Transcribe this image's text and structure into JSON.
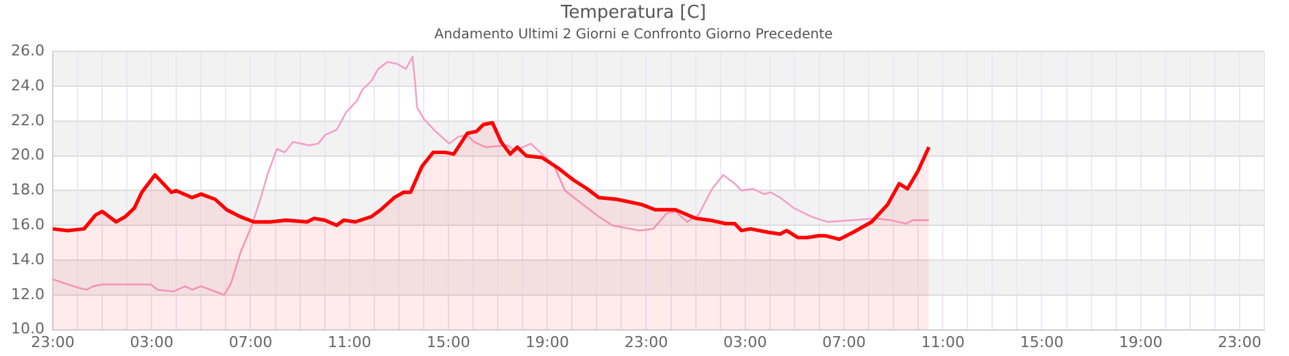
{
  "chart_data": {
    "type": "line",
    "title": "Temperatura [C]",
    "subtitle": "Andamento Ultimi 2 Giorni e Confronto Giorno Precedente",
    "xlim": [
      "--01-01T23:00",
      "--01-04T00:00"
    ],
    "xticks": [
      {
        "value": "--01-01T23:00",
        "label": "23:00"
      },
      {
        "value": "--01-02T00:00",
        "label": null
      },
      {
        "value": "--01-02T01:00",
        "label": null
      },
      {
        "value": "--01-02T02:00",
        "label": null
      },
      {
        "value": "--01-02T03:00",
        "label": "03:00"
      },
      {
        "value": "--01-02T04:00",
        "label": null
      },
      {
        "value": "--01-02T05:00",
        "label": null
      },
      {
        "value": "--01-02T06:00",
        "label": null
      },
      {
        "value": "--01-02T07:00",
        "label": "07:00"
      },
      {
        "value": "--01-02T08:00",
        "label": null
      },
      {
        "value": "--01-02T09:00",
        "label": null
      },
      {
        "value": "--01-02T10:00",
        "label": null
      },
      {
        "value": "--01-02T11:00",
        "label": "11:00"
      },
      {
        "value": "--01-02T12:00",
        "label": null
      },
      {
        "value": "--01-02T13:00",
        "label": null
      },
      {
        "value": "--01-02T14:00",
        "label": null
      },
      {
        "value": "--01-02T15:00",
        "label": "15:00"
      },
      {
        "value": "--01-02T16:00",
        "label": null
      },
      {
        "value": "--01-02T17:00",
        "label": null
      },
      {
        "value": "--01-02T18:00",
        "label": null
      },
      {
        "value": "--01-02T19:00",
        "label": "19:00"
      },
      {
        "value": "--01-02T20:00",
        "label": null
      },
      {
        "value": "--01-02T21:00",
        "label": null
      },
      {
        "value": "--01-02T22:00",
        "label": null
      },
      {
        "value": "--01-02T23:00",
        "label": "23:00"
      },
      {
        "value": "--01-03T00:00",
        "label": null
      },
      {
        "value": "--01-03T01:00",
        "label": null
      },
      {
        "value": "--01-03T02:00",
        "label": null
      },
      {
        "value": "--01-03T03:00",
        "label": "03:00"
      },
      {
        "value": "--01-03T04:00",
        "label": null
      },
      {
        "value": "--01-03T05:00",
        "label": null
      },
      {
        "value": "--01-03T06:00",
        "label": null
      },
      {
        "value": "--01-03T07:00",
        "label": "07:00"
      },
      {
        "value": "--01-03T08:00",
        "label": null
      },
      {
        "value": "--01-03T09:00",
        "label": null
      },
      {
        "value": "--01-03T10:00",
        "label": null
      },
      {
        "value": "--01-03T11:00",
        "label": "11:00"
      },
      {
        "value": "--01-03T12:00",
        "label": null
      },
      {
        "value": "--01-03T13:00",
        "label": null
      },
      {
        "value": "--01-03T14:00",
        "label": null
      },
      {
        "value": "--01-03T15:00",
        "label": "15:00"
      },
      {
        "value": "--01-03T16:00",
        "label": null
      },
      {
        "value": "--01-03T17:00",
        "label": null
      },
      {
        "value": "--01-03T18:00",
        "label": null
      },
      {
        "value": "--01-03T19:00",
        "label": "19:00"
      },
      {
        "value": "--01-03T20:00",
        "label": null
      },
      {
        "value": "--01-03T21:00",
        "label": null
      },
      {
        "value": "--01-03T22:00",
        "label": null
      },
      {
        "value": "--01-03T23:00",
        "label": "23:00"
      },
      {
        "value": "--01-04T00:00",
        "label": null
      }
    ],
    "ylim": [
      10,
      26
    ],
    "yticks": [
      {
        "value": 10,
        "label": "10.0"
      },
      {
        "value": 12,
        "label": "12.0"
      },
      {
        "value": 14,
        "label": "14.0"
      },
      {
        "value": 16,
        "label": "16.0"
      },
      {
        "value": 18,
        "label": "18.0"
      },
      {
        "value": 20,
        "label": "20.0"
      },
      {
        "value": 22,
        "label": "22.0"
      },
      {
        "value": 24,
        "label": "24.0"
      },
      {
        "value": 26,
        "label": "26.0"
      }
    ],
    "grid": true,
    "marker": "none",
    "bands": [
      {
        "axis": "y",
        "from": 12,
        "to": 14,
        "color": "#f2f2f2"
      },
      {
        "axis": "y",
        "from": 16,
        "to": 18,
        "color": "#f2f2f2"
      },
      {
        "axis": "y",
        "from": 20,
        "to": 22,
        "color": "#f2f2f2"
      },
      {
        "axis": "y",
        "from": 24,
        "to": 26,
        "color": "#f2f2f2"
      }
    ],
    "series": [
      {
        "type": "area",
        "color": "#ff0000",
        "x": [
          "--01-01T23:00",
          "--01-01T23:36",
          "--01-02T00:16",
          "--01-02T00:44",
          "--01-02T01:00",
          "--01-02T01:34",
          "--01-02T01:56",
          "--01-02T02:18",
          "--01-02T02:36",
          "--01-02T03:08",
          "--01-02T03:48",
          "--01-02T03:59",
          "--01-02T04:38",
          "--01-02T05:00",
          "--01-02T05:34",
          "--01-02T06:02",
          "--01-02T06:35",
          "--01-02T07:08",
          "--01-02T07:48",
          "--01-02T08:26",
          "--01-02T09:17",
          "--01-02T09:34",
          "--01-02T10:00",
          "--01-02T10:29",
          "--01-02T10:46",
          "--01-02T11:14",
          "--01-02T11:53",
          "--01-02T12:16",
          "--01-02T12:49",
          "--01-02T13:11",
          "--01-02T13:28",
          "--01-02T13:56",
          "--01-02T14:23",
          "--01-02T14:52",
          "--01-02T15:13",
          "--01-02T15:46",
          "--01-02T16:08",
          "--01-02T16:25",
          "--01-02T16:47",
          "--01-02T17:08",
          "--01-02T17:30",
          "--01-02T17:47",
          "--01-02T18:09",
          "--01-02T18:47",
          "--01-02T19:26",
          "--01-02T20:04",
          "--01-02T20:37",
          "--01-02T21:05",
          "--01-02T21:49",
          "--01-02T22:49",
          "--01-02T23:22",
          "--01-03T00:11",
          "--01-03T01:01",
          "--01-03T01:34",
          "--01-03T02:13",
          "--01-03T02:35",
          "--01-03T02:51",
          "--01-03T03:13",
          "--01-03T03:57",
          "--01-03T04:25",
          "--01-03T04:41",
          "--01-03T05:08",
          "--01-03T05:31",
          "--01-03T05:58",
          "--01-03T06:16",
          "--01-03T06:49",
          "--01-03T07:22",
          "--01-03T08:07",
          "--01-03T08:46",
          "--01-03T09:14",
          "--01-03T09:34",
          "--01-03T09:59",
          "--01-03T10:26"
        ],
        "values": [
          15.8,
          15.7,
          15.8,
          16.6,
          16.8,
          16.2,
          16.5,
          17.0,
          17.9,
          18.9,
          17.9,
          18.0,
          17.6,
          17.8,
          17.5,
          16.9,
          16.5,
          16.2,
          16.2,
          16.3,
          16.2,
          16.4,
          16.3,
          16.0,
          16.3,
          16.2,
          16.5,
          16.9,
          17.6,
          17.9,
          17.9,
          19.4,
          20.2,
          20.2,
          20.1,
          21.3,
          21.4,
          21.8,
          21.9,
          20.8,
          20.1,
          20.5,
          20.0,
          19.9,
          19.3,
          18.6,
          18.1,
          17.6,
          17.5,
          17.2,
          16.9,
          16.9,
          16.4,
          16.3,
          16.1,
          16.1,
          15.7,
          15.8,
          15.6,
          15.5,
          15.7,
          15.3,
          15.3,
          15.4,
          15.4,
          15.2,
          15.6,
          16.2,
          17.2,
          18.4,
          18.1,
          19.1,
          20.5
        ]
      },
      {
        "type": "line",
        "color": "#f4a0c8",
        "x": [
          "--01-01T23:00",
          "--01-01T23:37",
          "--01-02T00:05",
          "--01-02T00:22",
          "--01-02T00:38",
          "--01-02T01:00",
          "--01-02T01:40",
          "--01-02T02:58",
          "--01-02T03:14",
          "--01-02T03:53",
          "--01-02T04:21",
          "--01-02T04:38",
          "--01-02T05:00",
          "--01-02T05:34",
          "--01-02T05:56",
          "--01-02T06:13",
          "--01-02T06:35",
          "--01-02T07:03",
          "--01-02T07:25",
          "--01-02T07:42",
          "--01-02T08:04",
          "--01-02T08:23",
          "--01-02T08:43",
          "--01-02T09:22",
          "--01-02T09:44",
          "--01-02T10:01",
          "--01-02T10:29",
          "--01-02T10:52",
          "--01-02T11:19",
          "--01-02T11:31",
          "--01-02T11:53",
          "--01-02T12:10",
          "--01-02T12:32",
          "--01-02T12:54",
          "--01-02T13:17",
          "--01-02T13:33",
          "--01-02T13:39",
          "--01-02T13:44",
          "--01-02T14:01",
          "--01-02T14:29",
          "--01-02T15:02",
          "--01-02T15:24",
          "--01-02T15:46",
          "--01-02T16:02",
          "--01-02T16:30",
          "--01-02T17:25",
          "--01-02T17:41",
          "--01-02T18:20",
          "--01-02T18:47",
          "--01-02T19:15",
          "--01-02T19:43",
          "--01-02T20:21",
          "--01-02T21:05",
          "--01-02T21:38",
          "--01-02T22:44",
          "--01-02T23:17",
          "--01-02T23:50",
          "--01-03T00:11",
          "--01-03T00:39",
          "--01-03T01:07",
          "--01-03T01:40",
          "--01-03T02:07",
          "--01-03T02:35",
          "--01-03T02:51",
          "--01-03T03:19",
          "--01-03T03:46",
          "--01-03T04:02",
          "--01-03T04:25",
          "--01-03T04:58",
          "--01-03T05:41",
          "--01-03T06:20",
          "--01-03T07:20",
          "--01-03T08:18",
          "--01-03T08:52",
          "--01-03T09:31",
          "--01-03T09:47",
          "--01-03T10:26"
        ],
        "values": [
          12.9,
          12.6,
          12.4,
          12.3,
          12.5,
          12.6,
          12.6,
          12.6,
          12.3,
          12.2,
          12.5,
          12.3,
          12.5,
          12.2,
          12.0,
          12.7,
          14.4,
          16.0,
          17.6,
          19.0,
          20.4,
          20.2,
          20.8,
          20.6,
          20.7,
          21.2,
          21.5,
          22.5,
          23.2,
          23.8,
          24.3,
          25.0,
          25.4,
          25.3,
          25.0,
          25.7,
          24.3,
          22.8,
          22.1,
          21.4,
          20.7,
          21.1,
          21.2,
          20.8,
          20.5,
          20.6,
          20.3,
          20.7,
          20.1,
          19.5,
          18.0,
          17.3,
          16.5,
          16.0,
          15.7,
          15.8,
          16.7,
          16.8,
          16.2,
          16.6,
          18.1,
          18.9,
          18.4,
          18.0,
          18.1,
          17.8,
          17.9,
          17.6,
          17.0,
          16.5,
          16.2,
          16.3,
          16.4,
          16.3,
          16.1,
          16.3,
          16.3
        ]
      }
    ]
  }
}
